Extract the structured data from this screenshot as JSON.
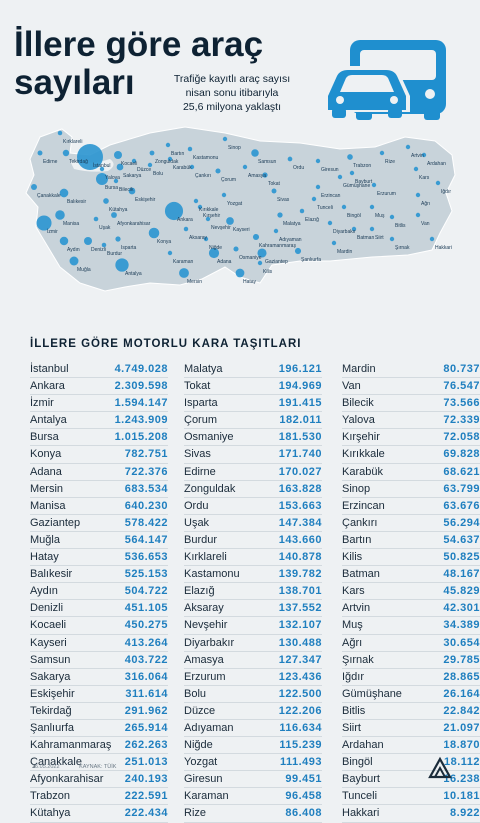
{
  "header": {
    "title_line1": "İllere göre araç",
    "title_line2": "sayıları",
    "subtitle_line1": "Trafiğe kayıtlı araç sayısı",
    "subtitle_line2": "nisan sonu itibarıyla",
    "subtitle_line3": "25,6 milyona yaklaştı"
  },
  "icon": "vehicles-icon",
  "colors": {
    "accent": "#1f8fcf",
    "bubble": "#2a95d0",
    "map_fill": "#c8d3da",
    "text": "#0e2233"
  },
  "map": {
    "labels": [
      "Kırklareli",
      "Edirne",
      "İstanbul",
      "Kocaeli",
      "Zonguldak",
      "Bartın",
      "Kastamonu",
      "Sinop",
      "Samsun",
      "Ordu",
      "Giresun",
      "Trabzon",
      "Rize",
      "Artvin",
      "Tokat",
      "Amasya",
      "Çorum",
      "Çankırı",
      "Karabük",
      "Bolu",
      "Düzce",
      "Sakarya",
      "Yalova",
      "Bursa",
      "Bilecik",
      "Tekirdağ",
      "Çanakkale",
      "Balıkesir",
      "Eskişehir",
      "Ankara",
      "Kırıkkale",
      "Yozgat",
      "Sivas",
      "Erzincan",
      "Bayburt",
      "Gümüşhane",
      "Erzurum",
      "Kars",
      "Ardahan",
      "Iğdır",
      "Ağrı",
      "Muş",
      "Bingöl",
      "Bitlis",
      "Van",
      "Hakkari",
      "Şırnak",
      "Siirt",
      "Batman",
      "Mardin",
      "Diyarbakır",
      "Elazığ",
      "Tunceli",
      "Malatya",
      "Adıyaman",
      "Şanlıurfa",
      "Kilis",
      "Gaziantep",
      "Hatay",
      "Osmaniye",
      "Adana",
      "Mersin",
      "Karaman",
      "Konya",
      "Aksaray",
      "Niğde",
      "Kayseri",
      "Nevşehir",
      "Kırşehir",
      "Kahramanmaraş",
      "Antalya",
      "Burdur",
      "Isparta",
      "Muğla",
      "Denizli",
      "Aydın",
      "İzmir",
      "Manisa",
      "Uşak",
      "Afyonkarahisar",
      "Kütahya"
    ]
  },
  "section_title": "İLLERE GÖRE MOTORLU KARA TAŞITLARI",
  "chart_data": {
    "type": "table",
    "title": "İLLERE GÖRE MOTORLU KARA TAŞITLARI",
    "columns": [
      [
        {
          "name": "İstanbul",
          "value": "4.749.028"
        },
        {
          "name": "Ankara",
          "value": "2.309.598"
        },
        {
          "name": "İzmir",
          "value": "1.594.147"
        },
        {
          "name": "Antalya",
          "value": "1.243.909"
        },
        {
          "name": "Bursa",
          "value": "1.015.208"
        },
        {
          "name": "Konya",
          "value": "782.751"
        },
        {
          "name": "Adana",
          "value": "722.376"
        },
        {
          "name": "Mersin",
          "value": "683.534"
        },
        {
          "name": "Manisa",
          "value": "640.230"
        },
        {
          "name": "Gaziantep",
          "value": "578.422"
        },
        {
          "name": "Muğla",
          "value": "564.147"
        },
        {
          "name": "Hatay",
          "value": "536.653"
        },
        {
          "name": "Balıkesir",
          "value": "525.153"
        },
        {
          "name": "Aydın",
          "value": "504.722"
        },
        {
          "name": "Denizli",
          "value": "451.105"
        },
        {
          "name": "Kocaeli",
          "value": "450.275"
        },
        {
          "name": "Kayseri",
          "value": "413.264"
        },
        {
          "name": "Samsun",
          "value": "403.722"
        },
        {
          "name": "Sakarya",
          "value": "316.064"
        },
        {
          "name": "Eskişehir",
          "value": "311.614"
        },
        {
          "name": "Tekirdağ",
          "value": "291.962"
        },
        {
          "name": "Şanlıurfa",
          "value": "265.914"
        },
        {
          "name": "Kahramanmaraş",
          "value": "262.263"
        },
        {
          "name": "Çanakkale",
          "value": "251.013"
        },
        {
          "name": "Afyonkarahisar",
          "value": "240.193"
        },
        {
          "name": "Trabzon",
          "value": "222.591"
        },
        {
          "name": "Kütahya",
          "value": "222.434"
        }
      ],
      [
        {
          "name": "Malatya",
          "value": "196.121"
        },
        {
          "name": "Tokat",
          "value": "194.969"
        },
        {
          "name": "Isparta",
          "value": "191.415"
        },
        {
          "name": "Çorum",
          "value": "182.011"
        },
        {
          "name": "Osmaniye",
          "value": "181.530"
        },
        {
          "name": "Sivas",
          "value": "171.740"
        },
        {
          "name": "Edirne",
          "value": "170.027"
        },
        {
          "name": "Zonguldak",
          "value": "163.828"
        },
        {
          "name": "Ordu",
          "value": "153.663"
        },
        {
          "name": "Uşak",
          "value": "147.384"
        },
        {
          "name": "Burdur",
          "value": "143.660"
        },
        {
          "name": "Kırklareli",
          "value": "140.878"
        },
        {
          "name": "Kastamonu",
          "value": "139.782"
        },
        {
          "name": "Elazığ",
          "value": "138.701"
        },
        {
          "name": "Aksaray",
          "value": "137.552"
        },
        {
          "name": "Nevşehir",
          "value": "132.107"
        },
        {
          "name": "Diyarbakır",
          "value": "130.488"
        },
        {
          "name": "Amasya",
          "value": "127.347"
        },
        {
          "name": "Erzurum",
          "value": "123.436"
        },
        {
          "name": "Bolu",
          "value": "122.500"
        },
        {
          "name": "Düzce",
          "value": "122.206"
        },
        {
          "name": "Adıyaman",
          "value": "116.634"
        },
        {
          "name": "Niğde",
          "value": "115.239"
        },
        {
          "name": "Yozgat",
          "value": "111.493"
        },
        {
          "name": "Giresun",
          "value": "99.451"
        },
        {
          "name": "Karaman",
          "value": "96.458"
        },
        {
          "name": "Rize",
          "value": "86.408"
        }
      ],
      [
        {
          "name": "Mardin",
          "value": "80.737"
        },
        {
          "name": "Van",
          "value": "76.547"
        },
        {
          "name": "Bilecik",
          "value": "73.566"
        },
        {
          "name": "Yalova",
          "value": "72.339"
        },
        {
          "name": "Kırşehir",
          "value": "72.058"
        },
        {
          "name": "Kırıkkale",
          "value": "69.828"
        },
        {
          "name": "Karabük",
          "value": "68.621"
        },
        {
          "name": "Sinop",
          "value": "63.799"
        },
        {
          "name": "Erzincan",
          "value": "63.676"
        },
        {
          "name": "Çankırı",
          "value": "56.294"
        },
        {
          "name": "Bartın",
          "value": "54.637"
        },
        {
          "name": "Kilis",
          "value": "50.825"
        },
        {
          "name": "Batman",
          "value": "48.167"
        },
        {
          "name": "Kars",
          "value": "45.829"
        },
        {
          "name": "Artvin",
          "value": "42.301"
        },
        {
          "name": "Muş",
          "value": "34.389"
        },
        {
          "name": "Ağrı",
          "value": "30.654"
        },
        {
          "name": "Şırnak",
          "value": "29.785"
        },
        {
          "name": "Iğdır",
          "value": "28.865"
        },
        {
          "name": "Gümüşhane",
          "value": "26.164"
        },
        {
          "name": "Bitlis",
          "value": "22.842"
        },
        {
          "name": "Siirt",
          "value": "21.097"
        },
        {
          "name": "Ardahan",
          "value": "18.870"
        },
        {
          "name": "Bingöl",
          "value": "18.112"
        },
        {
          "name": "Bayburt",
          "value": "16.238"
        },
        {
          "name": "Tunceli",
          "value": "10.181"
        },
        {
          "name": "Hakkari",
          "value": "8.922"
        }
      ]
    ]
  },
  "footer": {
    "date": "25.05.2022",
    "source": "KAYNAK: TÜİK",
    "logo": "aa-logo-icon"
  }
}
